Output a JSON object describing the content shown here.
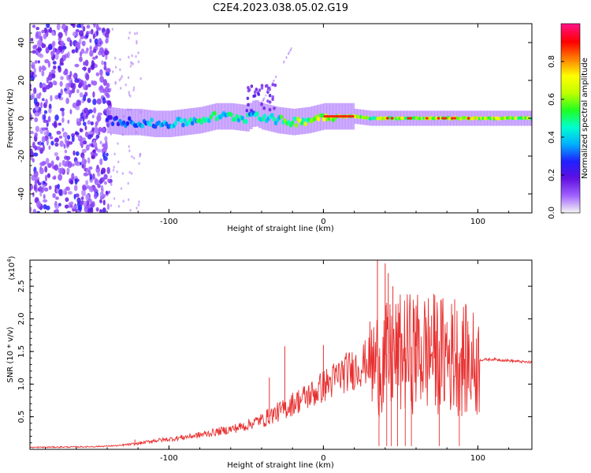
{
  "title": "C2E4.2023.038.05.02.G19",
  "chart_data": [
    {
      "type": "heatmap",
      "xlabel": "Height of straight line (km)",
      "ylabel": "Frequency (Hz)",
      "xlim": [
        -190,
        135
      ],
      "ylim": [
        -50,
        50
      ],
      "xticks": [
        -100,
        0,
        100
      ],
      "yticks": [
        -40,
        -20,
        0,
        20,
        40
      ],
      "colorbar": {
        "label": "Normalized spectral amplitude",
        "range": [
          0,
          1
        ],
        "ticks": [
          "0.0",
          "0.2",
          "0.4",
          "0.6",
          "0.8"
        ],
        "colors": [
          "#f4f4f4",
          "#a060ff",
          "#6010e0",
          "#2020ff",
          "#00b0ff",
          "#00ffd0",
          "#20ff20",
          "#c0ff00",
          "#ffff00",
          "#ff8000",
          "#ff0000",
          "#ff1080"
        ]
      },
      "signal_trace": {
        "x": [
          -140,
          -130,
          -120,
          -110,
          -100,
          -90,
          -80,
          -70,
          -60,
          -50,
          -45,
          -40,
          -30,
          -20,
          -10,
          0,
          10,
          20,
          30,
          40,
          60,
          80,
          100,
          135
        ],
        "freq": [
          -1,
          -2,
          -2,
          -3,
          -3,
          -2,
          -1,
          1,
          1,
          0,
          3,
          1,
          -1,
          -2,
          -1,
          1,
          1,
          1,
          0,
          0,
          0,
          0,
          0,
          0
        ],
        "amplitude": [
          0.3,
          0.4,
          0.45,
          0.5,
          0.5,
          0.55,
          0.6,
          0.6,
          0.6,
          0.55,
          0.55,
          0.55,
          0.6,
          0.75,
          0.8,
          0.85,
          0.9,
          0.9,
          0.7,
          0.8,
          0.85,
          0.85,
          0.9,
          0.75
        ]
      }
    },
    {
      "type": "line",
      "xlabel": "Height of straight line (km)",
      "ylabel": "SNR (10 * v/v)",
      "y_multiplier": "(x10",
      "y_multiplier_exp": "4",
      "y_multiplier_close": ")",
      "xlim": [
        -190,
        135
      ],
      "ylim": [
        0,
        2.9
      ],
      "xticks": [
        -100,
        0,
        100
      ],
      "yticks": [
        "0.5",
        "1.0",
        "1.5",
        "2.0",
        "2.5"
      ],
      "color": "#e83030",
      "series": [
        {
          "x": [
            -190,
            -150,
            -130,
            -120,
            -110,
            -100,
            -90,
            -80,
            -70,
            -60,
            -50,
            -40,
            -35,
            -30,
            -25,
            -20,
            -15,
            -10,
            -5,
            0,
            5,
            10,
            20,
            30,
            35,
            40,
            45,
            50,
            55,
            60,
            65,
            70,
            80,
            90,
            100,
            101,
            110,
            120,
            135
          ],
          "y": [
            0.03,
            0.04,
            0.06,
            0.08,
            0.12,
            0.14,
            0.17,
            0.2,
            0.24,
            0.28,
            0.33,
            0.42,
            0.5,
            0.55,
            0.6,
            0.68,
            0.74,
            0.8,
            0.85,
            0.95,
            1.0,
            1.1,
            1.2,
            1.33,
            1.42,
            1.45,
            1.5,
            1.55,
            1.57,
            1.58,
            1.6,
            1.58,
            1.52,
            1.47,
            1.37,
            1.37,
            1.38,
            1.36,
            1.33
          ]
        }
      ],
      "spikes": {
        "x": [
          -122,
          -35,
          -25,
          0,
          35,
          40,
          42,
          45,
          47,
          60,
          70,
          80,
          85,
          90
        ],
        "y": [
          0.15,
          1.1,
          1.58,
          1.6,
          2.95,
          2.85,
          2.7,
          2.5,
          1.0,
          2.2,
          2.05,
          1.95,
          2.3,
          1.9
        ]
      }
    }
  ]
}
